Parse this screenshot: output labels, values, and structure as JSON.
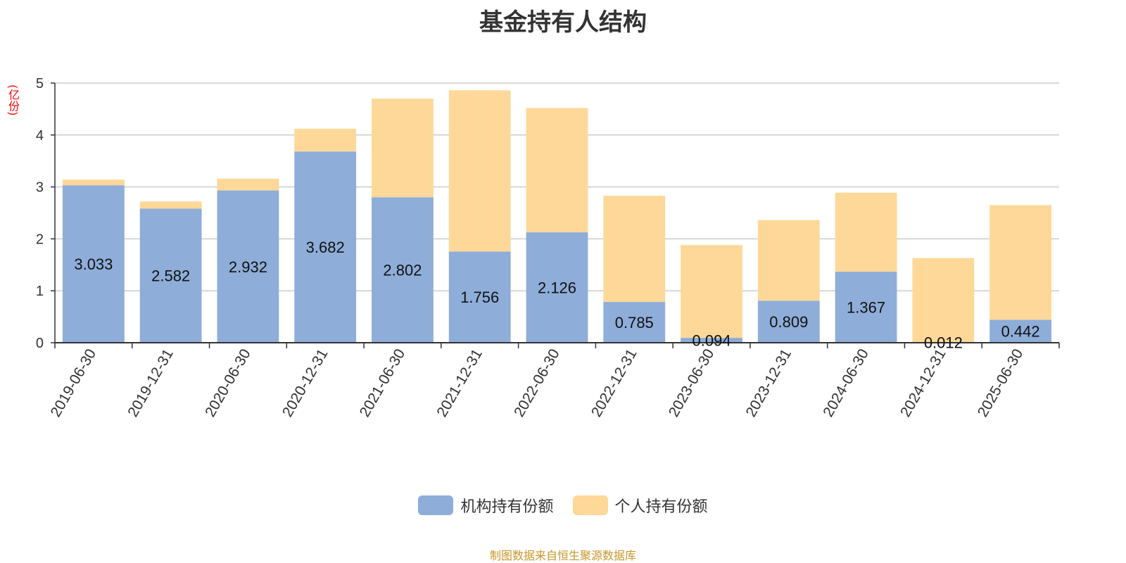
{
  "chart_data": {
    "type": "bar",
    "stacked": true,
    "title": "基金持有人结构",
    "ylabel": "(亿份)",
    "ylim": [
      0,
      5
    ],
    "yticks": [
      0,
      1,
      2,
      3,
      4,
      5
    ],
    "grid": true,
    "legend_position": "bottom",
    "categories": [
      "2019-06-30",
      "2019-12-31",
      "2020-06-30",
      "2020-12-31",
      "2021-06-30",
      "2021-12-31",
      "2022-06-30",
      "2022-12-31",
      "2023-06-30",
      "2023-12-31",
      "2024-06-30",
      "2024-12-31",
      "2025-06-30"
    ],
    "series": [
      {
        "name": "机构持有份额",
        "color": "#8eadd9",
        "values": [
          3.033,
          2.582,
          2.932,
          3.682,
          2.802,
          1.756,
          2.126,
          0.785,
          0.094,
          0.809,
          1.367,
          0.012,
          0.442
        ],
        "labels": [
          "3.033",
          "2.582",
          "2.932",
          "3.682",
          "2.802",
          "1.756",
          "2.126",
          "0.785",
          "0.094",
          "0.809",
          "1.367",
          "0.012",
          "0.442"
        ]
      },
      {
        "name": "个人持有份额",
        "color": "#fed898",
        "values": [
          0.107,
          0.138,
          0.228,
          0.438,
          1.898,
          3.104,
          2.394,
          2.045,
          1.786,
          1.551,
          1.523,
          1.618,
          2.208
        ]
      }
    ]
  },
  "source_text": "制图数据来自恒生聚源数据库",
  "source_color": "#c8962a"
}
